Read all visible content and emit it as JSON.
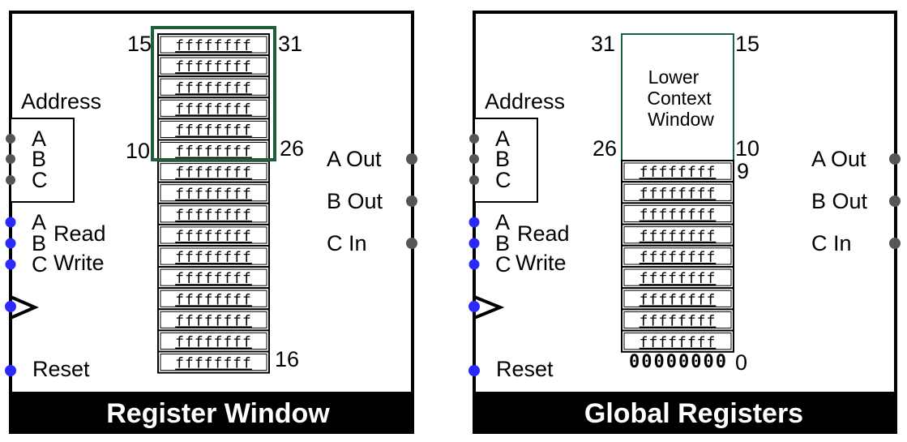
{
  "colors": {
    "frame": "#000000",
    "footer_bg": "#000000",
    "footer_text": "#ffffff",
    "window_highlight": "#1e5e3a",
    "gray_port": "#555555",
    "blue_port": "#2a2aff"
  },
  "left": {
    "title": "Register Window",
    "address_label": "Address",
    "address_ports": [
      "A",
      "B",
      "C"
    ],
    "rw_ports": [
      "A",
      "B",
      "C"
    ],
    "read_label": "Read",
    "write_label": "Write",
    "reset_label": "Reset",
    "outputs": [
      "A Out",
      "B Out",
      "C In"
    ],
    "register_value": "ffffffff",
    "register_count": 16,
    "window_rows": 6,
    "labels": {
      "top_left": "15",
      "top_right": "31",
      "mid_left": "10",
      "mid_right": "26",
      "bottom_right": "16"
    }
  },
  "right": {
    "title": "Global Registers",
    "address_label": "Address",
    "address_ports": [
      "A",
      "B",
      "C"
    ],
    "rw_ports": [
      "A",
      "B",
      "C"
    ],
    "read_label": "Read",
    "write_label": "Write",
    "reset_label": "Reset",
    "outputs": [
      "A Out",
      "B Out",
      "C In"
    ],
    "window_text": [
      "Lower",
      "Context",
      "Window"
    ],
    "register_value": "ffffffff",
    "register_count": 9,
    "zero_value": "00000000",
    "labels": {
      "top_left": "31",
      "top_right": "15",
      "mid_left": "26",
      "mid_right": "10",
      "reg9": "9",
      "zero": "0"
    }
  }
}
